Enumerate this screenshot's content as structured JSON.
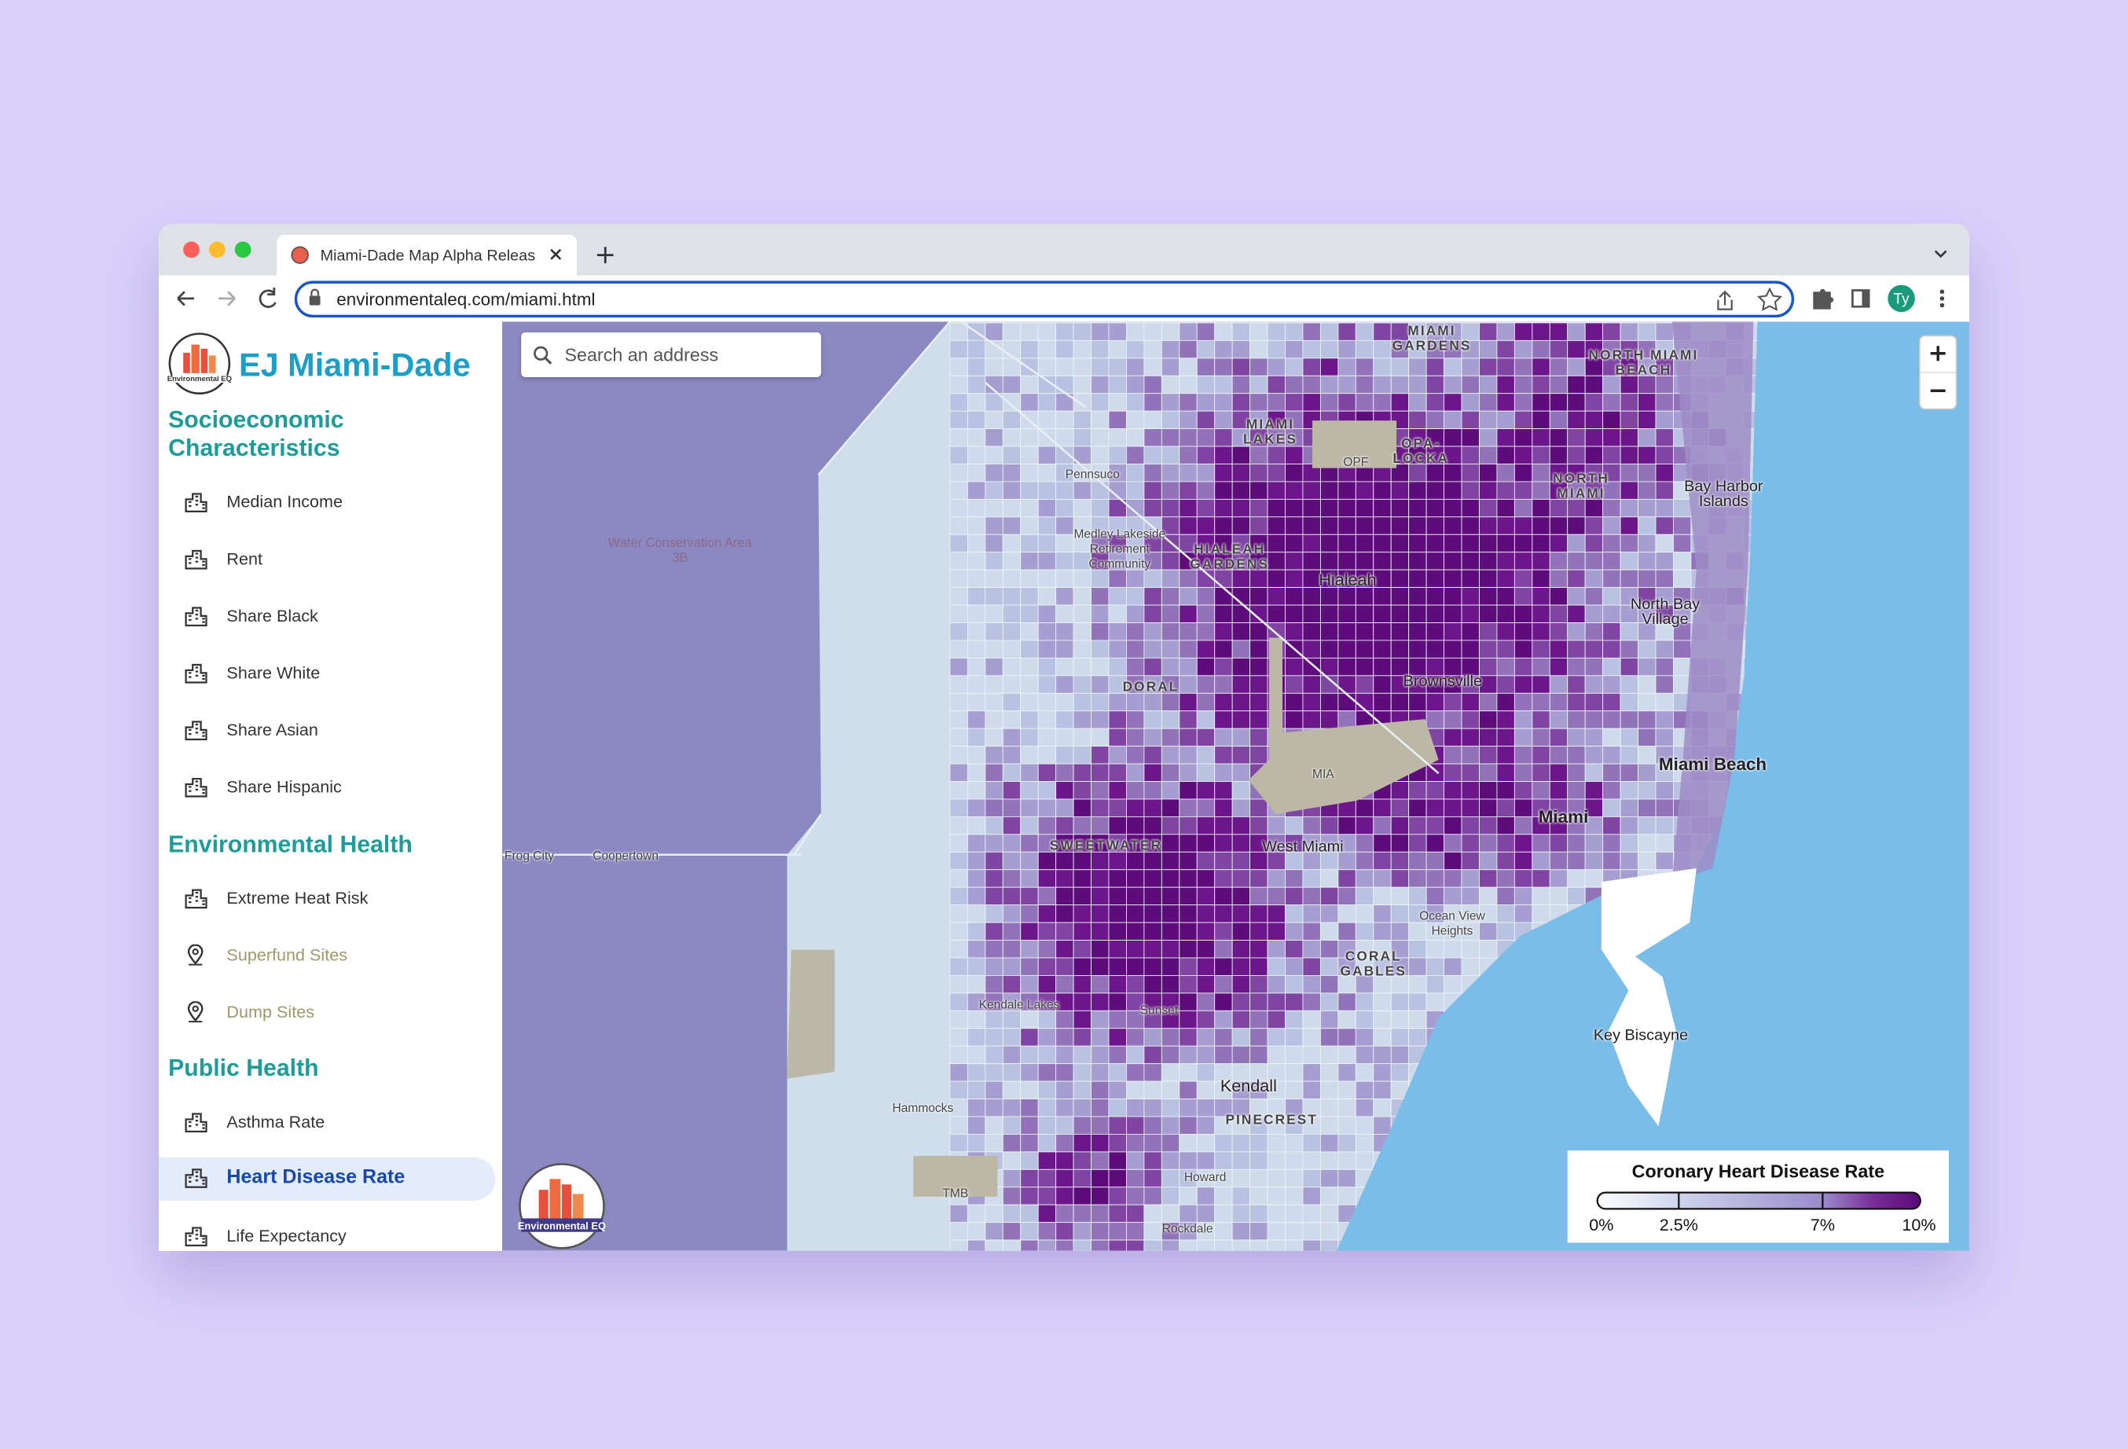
{
  "browser": {
    "tab_title": "Miami-Dade Map Alpha Releas",
    "url": "environmentaleq.com/miami.html",
    "profile": "Ty"
  },
  "sidebar": {
    "logo_text": "Environmental EQ",
    "title": "EJ Miami-Dade",
    "sections": [
      {
        "heading": "Socioeconomic Characteristics",
        "items": [
          {
            "label": "Median Income",
            "icon": "building"
          },
          {
            "label": "Rent",
            "icon": "building"
          },
          {
            "label": "Share Black",
            "icon": "building"
          },
          {
            "label": "Share White",
            "icon": "building"
          },
          {
            "label": "Share Asian",
            "icon": "building"
          },
          {
            "label": "Share Hispanic",
            "icon": "building"
          }
        ]
      },
      {
        "heading": "Environmental Health",
        "items": [
          {
            "label": "Extreme Heat Risk",
            "icon": "building"
          },
          {
            "label": "Superfund Sites",
            "icon": "pin"
          },
          {
            "label": "Dump Sites",
            "icon": "pin"
          }
        ]
      },
      {
        "heading": "Public Health",
        "items": [
          {
            "label": "Asthma Rate",
            "icon": "building"
          },
          {
            "label": "Heart Disease Rate",
            "icon": "building",
            "active": true
          },
          {
            "label": "Life Expectancy",
            "icon": "building"
          }
        ]
      }
    ]
  },
  "map": {
    "search_placeholder": "Search an address",
    "logo_text": "Environmental EQ",
    "labels": [
      "MIAMI GARDENS",
      "NORTH MIAMI BEACH",
      "MIAMI LAKES",
      "OPF",
      "OPA-LOCKA",
      "Pennsuco",
      "NORTH MIAMI",
      "Bay Harbor Islands",
      "Water Conservation Area 3B",
      "Medley Lakeside Retirement Community",
      "HIALEAH GARDENS",
      "Hialeah",
      "North Bay Village",
      "DORAL",
      "Brownsville",
      "MIA",
      "Miami Beach",
      "Miami",
      "Frog City",
      "Coopertown",
      "SWEETWATER",
      "West Miami",
      "Ocean View Heights",
      "CORAL GABLES",
      "Kendale Lakes",
      "Sunset",
      "Key Biscayne",
      "Kendall",
      "Hammocks",
      "PINECREST",
      "Howard",
      "TMB",
      "Rockdale"
    ],
    "legend": {
      "title": "Coronary Heart Disease Rate",
      "ticks": [
        "0%",
        "2.5%",
        "7%",
        "10%"
      ]
    }
  }
}
